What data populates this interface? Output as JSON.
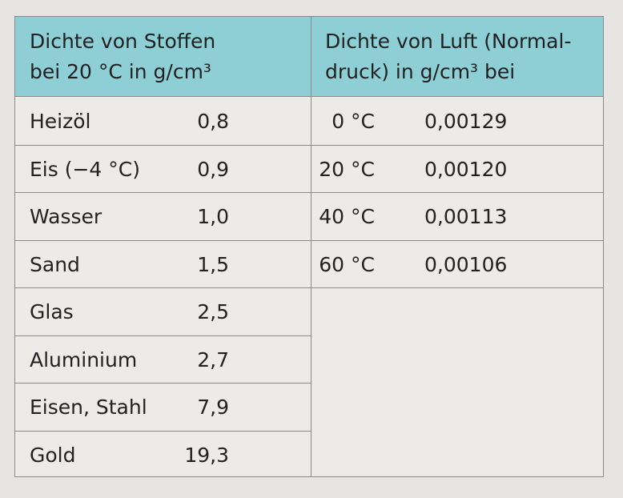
{
  "table": {
    "left_header": [
      "Dichte von Stoffen",
      "bei 20 °C in g/cm³"
    ],
    "right_header": [
      "Dichte von Luft (Normal-",
      "druck) in g/cm³ bei"
    ],
    "left_rows": [
      [
        "Heizöl",
        "0,8"
      ],
      [
        "Eis (−4 °C)",
        "0,9"
      ],
      [
        "Wasser",
        "1,0"
      ],
      [
        "Sand",
        "1,5"
      ],
      [
        "Glas",
        "2,5"
      ],
      [
        "Aluminium",
        "2,7"
      ],
      [
        "Eisen, Stahl",
        "7,9"
      ],
      [
        "Gold",
        "19,3"
      ]
    ],
    "right_rows": [
      [
        "0 °C",
        "0,00129"
      ],
      [
        "20 °C",
        "0,00120"
      ],
      [
        "40 °C",
        "0,00113"
      ],
      [
        "60 °C",
        "0,00106"
      ]
    ]
  }
}
